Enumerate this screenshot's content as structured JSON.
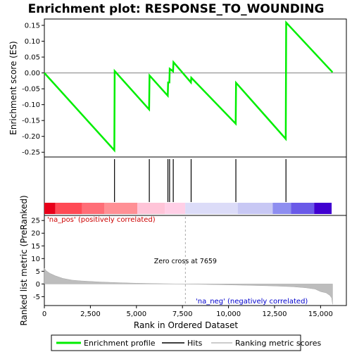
{
  "chart_data": {
    "type": "line",
    "title": "Enrichment plot: RESPONSE_TO_WOUNDING",
    "es_panel": {
      "ylabel": "Enrichment score (ES)",
      "ylim": [
        -0.265,
        0.17
      ],
      "yticks": [
        0.15,
        0.1,
        0.05,
        0.0,
        -0.05,
        -0.1,
        -0.15,
        -0.2,
        -0.25
      ],
      "ytick_labels": [
        "0.15",
        "0.10",
        "0.05",
        "0.00",
        "-0.05",
        "-0.10",
        "-0.15",
        "-0.20",
        "-0.25"
      ],
      "series": [
        {
          "name": "Enrichment profile",
          "color": "#00ff00",
          "x": [
            0,
            3800,
            3820,
            5690,
            5710,
            6700,
            6720,
            6790,
            6810,
            6990,
            7010,
            7960,
            7980,
            10390,
            10410,
            13110,
            13130,
            15650
          ],
          "y": [
            0.0,
            -0.244,
            0.006,
            -0.115,
            -0.008,
            -0.072,
            -0.03,
            -0.03,
            0.013,
            0.005,
            0.034,
            -0.03,
            -0.015,
            -0.16,
            -0.031,
            -0.208,
            0.159,
            0.002
          ]
        }
      ]
    },
    "hits": {
      "name": "Hits",
      "positions": [
        3810,
        5700,
        6710,
        6800,
        7000,
        7970,
        10400,
        13120
      ]
    },
    "metric_panel": {
      "ylabel": "Ranked list metric (PreRanked)",
      "ylim": [
        -8.5,
        27
      ],
      "yticks": [
        25,
        20,
        15,
        10,
        5,
        0,
        -5
      ],
      "ytick_labels": [
        "25",
        "20",
        "15",
        "10",
        "5",
        "0",
        "-5"
      ],
      "series_name": "Ranking metric scores",
      "curve": {
        "x": [
          0,
          100,
          300,
          600,
          1000,
          1500,
          2000,
          3000,
          4000,
          5000,
          6000,
          7000,
          7659,
          9000,
          11000,
          12500,
          13500,
          14200,
          14700,
          15000,
          15300,
          15500,
          15600,
          15650
        ],
        "y": [
          6.2,
          5.2,
          4.2,
          3.2,
          2.2,
          1.5,
          1.2,
          0.8,
          0.5,
          0.3,
          0.15,
          0.05,
          0.0,
          -0.2,
          -0.5,
          -0.8,
          -1.1,
          -1.5,
          -2.0,
          -3.0,
          -3.5,
          -4.5,
          -5.5,
          -8.0
        ]
      },
      "zero_cross_label": "Zero cross at 7659",
      "zero_cross": 7659,
      "pos_label": "'na_pos' (positively correlated)",
      "neg_label": "'na_neg' (negatively correlated)"
    },
    "xlabel": "Rank in Ordered Dataset",
    "xlim": [
      0,
      16400
    ],
    "xticks": [
      0,
      2500,
      5000,
      7500,
      10000,
      12500,
      15000
    ],
    "xtick_labels": [
      "0",
      "2,500",
      "5,000",
      "7,500",
      "10,000",
      "12,500",
      "15,000"
    ],
    "colorbar": {
      "segments": [
        {
          "from": 0,
          "to": 600,
          "color": "#e8001a"
        },
        {
          "from": 600,
          "to": 2050,
          "color": "#ff4a55"
        },
        {
          "from": 2050,
          "to": 3250,
          "color": "#ff6e77"
        },
        {
          "from": 3250,
          "to": 5050,
          "color": "#ff9095"
        },
        {
          "from": 5050,
          "to": 6550,
          "color": "#ffc4d8"
        },
        {
          "from": 6550,
          "to": 7650,
          "color": "#ffcfe6"
        },
        {
          "from": 7650,
          "to": 10500,
          "color": "#dcdcf8"
        },
        {
          "from": 10500,
          "to": 12400,
          "color": "#c8c8f4"
        },
        {
          "from": 12400,
          "to": 13400,
          "color": "#8e8ef0"
        },
        {
          "from": 13400,
          "to": 14650,
          "color": "#6a5ae8"
        },
        {
          "from": 14650,
          "to": 15600,
          "color": "#4000d0"
        }
      ]
    },
    "legend": {
      "placement": "bottom",
      "items": [
        {
          "label": "Enrichment profile",
          "color": "#00ff00"
        },
        {
          "label": "Hits",
          "color": "#000000"
        },
        {
          "label": "Ranking metric scores",
          "color": "#bbbbbb"
        }
      ]
    }
  }
}
